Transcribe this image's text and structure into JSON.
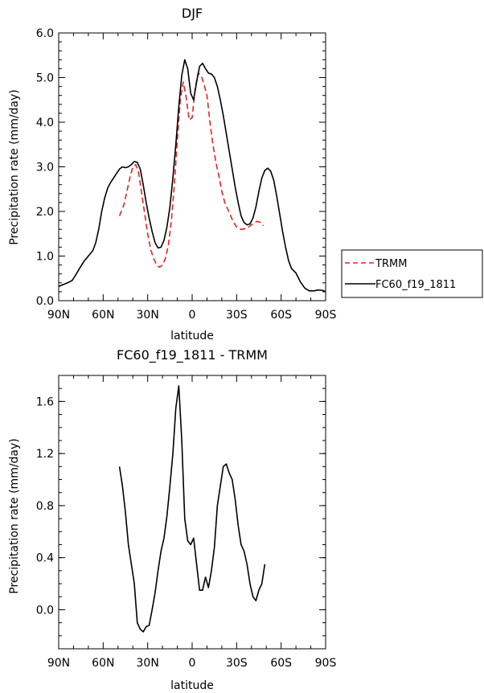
{
  "chart_data": [
    {
      "type": "line",
      "title": "DJF",
      "xlabel": "latitude",
      "ylabel": "Precipitation rate (mm/day)",
      "xlim": [
        90,
        -90
      ],
      "ylim": [
        0,
        6
      ],
      "x_tick_values": [
        90,
        60,
        30,
        0,
        -30,
        -60,
        -90
      ],
      "x_tick_labels": [
        "90N",
        "60N",
        "30N",
        "0",
        "30S",
        "60S",
        "90S"
      ],
      "y_tick_values": [
        0,
        1,
        2,
        3,
        4,
        5,
        6
      ],
      "y_tick_labels": [
        "0.0",
        "1.0",
        "2.0",
        "3.0",
        "4.0",
        "5.0",
        "6.0"
      ],
      "grid": false,
      "legend_position": "outside-right",
      "series": [
        {
          "name": "TRMM",
          "color": "#e8221e",
          "dash": "dashed",
          "x": [
            49,
            46,
            44,
            42,
            40,
            38,
            36,
            34,
            32,
            30,
            28,
            26,
            24,
            22,
            20,
            18,
            16,
            14,
            12,
            10,
            8,
            6,
            4,
            2,
            0,
            -2,
            -4,
            -6,
            -8,
            -10,
            -12,
            -14,
            -16,
            -18,
            -20,
            -22,
            -24,
            -26,
            -28,
            -30,
            -32,
            -34,
            -36,
            -38,
            -40,
            -42,
            -44,
            -46,
            -48
          ],
          "y": [
            1.9,
            2.15,
            2.45,
            2.75,
            3.0,
            3.05,
            2.85,
            2.4,
            1.95,
            1.5,
            1.15,
            0.95,
            0.8,
            0.75,
            0.8,
            0.95,
            1.25,
            1.8,
            2.6,
            3.6,
            4.5,
            4.9,
            4.55,
            4.05,
            4.1,
            4.75,
            5.1,
            5.05,
            4.85,
            4.6,
            4.0,
            3.5,
            3.1,
            2.8,
            2.45,
            2.2,
            2.05,
            1.9,
            1.75,
            1.65,
            1.6,
            1.6,
            1.62,
            1.65,
            1.7,
            1.75,
            1.78,
            1.75,
            1.68
          ]
        },
        {
          "name": "FC60_f19_1811",
          "color": "#000000",
          "dash": "solid",
          "x": [
            90,
            87,
            84,
            81,
            79,
            76,
            73,
            70,
            67,
            65,
            63,
            61,
            59,
            57,
            55,
            53,
            51,
            49,
            47,
            45,
            43,
            41,
            39,
            37,
            35,
            33,
            31,
            29,
            27,
            25,
            23,
            21,
            19,
            17,
            15,
            13,
            11,
            9,
            7,
            5,
            3,
            1,
            -1,
            -3,
            -5,
            -7,
            -9,
            -11,
            -13,
            -15,
            -17,
            -19,
            -21,
            -23,
            -25,
            -27,
            -29,
            -31,
            -33,
            -35,
            -37,
            -39,
            -41,
            -43,
            -45,
            -47,
            -49,
            -51,
            -53,
            -55,
            -57,
            -59,
            -61,
            -63,
            -65,
            -67,
            -70,
            -73,
            -76,
            -79,
            -82,
            -85,
            -88,
            -90
          ],
          "y": [
            0.32,
            0.36,
            0.4,
            0.45,
            0.55,
            0.72,
            0.88,
            1.0,
            1.12,
            1.3,
            1.6,
            2.0,
            2.3,
            2.52,
            2.65,
            2.75,
            2.85,
            2.95,
            3.0,
            2.98,
            3.0,
            3.05,
            3.12,
            3.1,
            2.95,
            2.6,
            2.2,
            1.85,
            1.55,
            1.3,
            1.18,
            1.2,
            1.35,
            1.65,
            2.1,
            2.75,
            3.5,
            4.35,
            5.05,
            5.4,
            5.2,
            4.65,
            4.5,
            4.9,
            5.25,
            5.32,
            5.2,
            5.1,
            5.08,
            5.0,
            4.8,
            4.5,
            4.15,
            3.75,
            3.35,
            2.95,
            2.55,
            2.2,
            1.9,
            1.75,
            1.7,
            1.72,
            1.85,
            2.1,
            2.45,
            2.75,
            2.92,
            2.97,
            2.9,
            2.7,
            2.35,
            1.95,
            1.55,
            1.2,
            0.9,
            0.72,
            0.62,
            0.42,
            0.28,
            0.22,
            0.22,
            0.24,
            0.23,
            0.2
          ]
        }
      ]
    },
    {
      "type": "line",
      "title": "FC60_f19_1811 - TRMM",
      "xlabel": "latitude",
      "ylabel": "Precipitation rate (mm/day)",
      "xlim": [
        90,
        -90
      ],
      "ylim": [
        -0.3,
        1.8
      ],
      "x_tick_values": [
        90,
        60,
        30,
        0,
        -30,
        -60,
        -90
      ],
      "x_tick_labels": [
        "90N",
        "60N",
        "30N",
        "0",
        "30S",
        "60S",
        "90S"
      ],
      "y_tick_values": [
        0.0,
        0.4,
        0.8,
        1.2,
        1.6
      ],
      "y_tick_labels": [
        "0.0",
        "0.4",
        "0.8",
        "1.2",
        "1.6"
      ],
      "grid": false,
      "series": [
        {
          "color": "#000000",
          "dash": "solid",
          "x": [
            49,
            47,
            45,
            43,
            41,
            39,
            37,
            35,
            33,
            31,
            29,
            27,
            25,
            23,
            21,
            19,
            17,
            15,
            13,
            11,
            9,
            7,
            5,
            3,
            1,
            -1,
            -3,
            -5,
            -7,
            -9,
            -11,
            -13,
            -15,
            -17,
            -19,
            -21,
            -23,
            -25,
            -27,
            -29,
            -31,
            -33,
            -35,
            -37,
            -39,
            -41,
            -43,
            -45,
            -47,
            -49
          ],
          "y": [
            1.1,
            0.95,
            0.75,
            0.5,
            0.35,
            0.2,
            -0.1,
            -0.15,
            -0.17,
            -0.13,
            -0.12,
            0.0,
            0.13,
            0.3,
            0.45,
            0.55,
            0.72,
            0.95,
            1.2,
            1.55,
            1.72,
            1.3,
            0.7,
            0.53,
            0.5,
            0.55,
            0.35,
            0.15,
            0.15,
            0.25,
            0.17,
            0.3,
            0.48,
            0.8,
            0.95,
            1.1,
            1.12,
            1.05,
            1.0,
            0.85,
            0.65,
            0.5,
            0.45,
            0.35,
            0.2,
            0.1,
            0.07,
            0.15,
            0.2,
            0.35
          ]
        }
      ]
    }
  ]
}
